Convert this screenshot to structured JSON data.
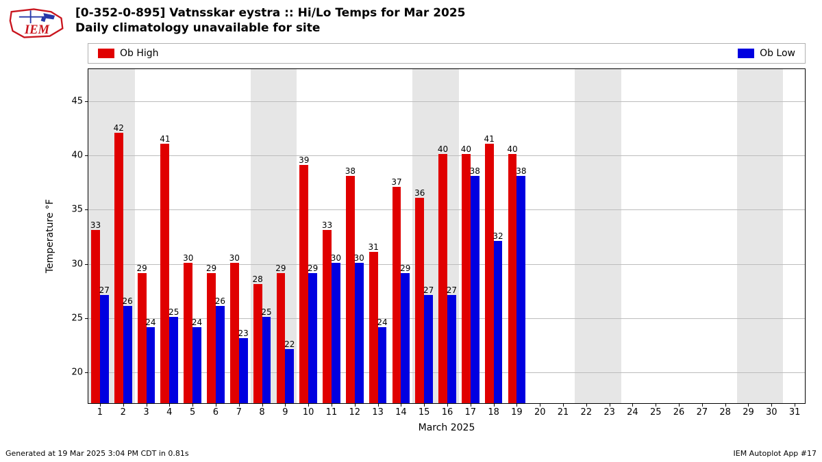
{
  "logo": {
    "label": "IEM",
    "color": "#c9151e",
    "accent": "#2738a8"
  },
  "title": {
    "line1": "[0-352-0-895] Vatnsskar eystra :: Hi/Lo Temps for Mar 2025",
    "line2": "Daily climatology unavailable for site",
    "fontsize": 17
  },
  "legend": {
    "high": {
      "label": "Ob High",
      "color": "#e00000"
    },
    "low": {
      "label": "Ob Low",
      "color": "#0000e0"
    }
  },
  "chart": {
    "type": "bar",
    "xlabel": "March 2025",
    "ylabel": "Temperature °F",
    "ylim": [
      17,
      48
    ],
    "ytick_step": 5,
    "yticks": [
      20,
      25,
      30,
      35,
      40,
      45
    ],
    "xlim": [
      0.5,
      31.5
    ],
    "days": [
      1,
      2,
      3,
      4,
      5,
      6,
      7,
      8,
      9,
      10,
      11,
      12,
      13,
      14,
      15,
      16,
      17,
      18,
      19,
      20,
      21,
      22,
      23,
      24,
      25,
      26,
      27,
      28,
      29,
      30,
      31
    ],
    "weekend_days": [
      1,
      2,
      8,
      9,
      15,
      16,
      22,
      23,
      29,
      30
    ],
    "weekend_band_color": "#e6e6e6",
    "grid_color": "#bcbcbc",
    "background_color": "#ffffff",
    "bar_width": 0.38,
    "label_fontsize": 12,
    "axis_fontsize": 13,
    "high": {
      "color": "#e00000",
      "values": [
        33,
        42,
        29,
        41,
        30,
        29,
        30,
        28,
        29,
        39,
        33,
        38,
        31,
        37,
        36,
        40,
        40,
        41,
        40
      ]
    },
    "low": {
      "color": "#0000e0",
      "values": [
        27,
        26,
        24,
        25,
        24,
        26,
        23,
        25,
        22,
        29,
        30,
        30,
        24,
        29,
        27,
        27,
        38,
        32,
        38
      ]
    }
  },
  "footer": {
    "left": "Generated at 19 Mar 2025 3:04 PM CDT in 0.81s",
    "right": "IEM Autoplot App #17"
  }
}
